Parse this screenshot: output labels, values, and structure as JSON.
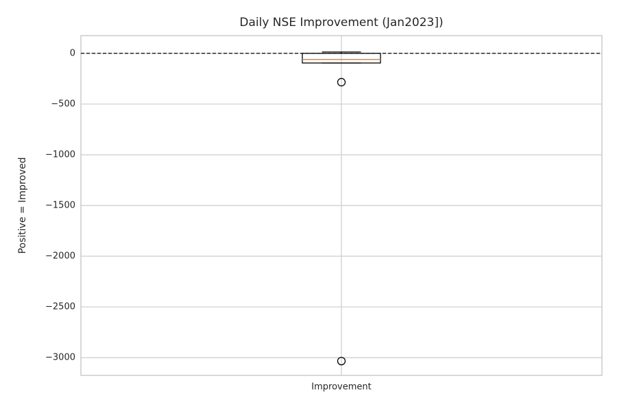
{
  "chart_data": {
    "type": "box",
    "title": "Daily NSE Improvement (Jan2023])",
    "ylabel": "Positive = Improved",
    "categories": [
      "Improvement"
    ],
    "boxes": [
      {
        "whislo": -95,
        "q1": -95,
        "med": -60,
        "q3": 0,
        "whishi": 14,
        "fliers": [
          -284,
          -3034
        ]
      }
    ],
    "box_color": "#000000",
    "median_color": "#ff7f0e",
    "hline": 0,
    "ylim": [
      -3175,
      175
    ],
    "yticks": [
      0,
      {
        "value": -500,
        "label": "−500"
      },
      {
        "value": -1000,
        "label": "−1000"
      },
      {
        "value": -1500,
        "label": "−1500"
      },
      {
        "value": -2000,
        "label": "−2000"
      },
      {
        "value": -2500,
        "label": "−2500"
      },
      {
        "value": -3000,
        "label": "−3000"
      }
    ],
    "grid": true
  }
}
